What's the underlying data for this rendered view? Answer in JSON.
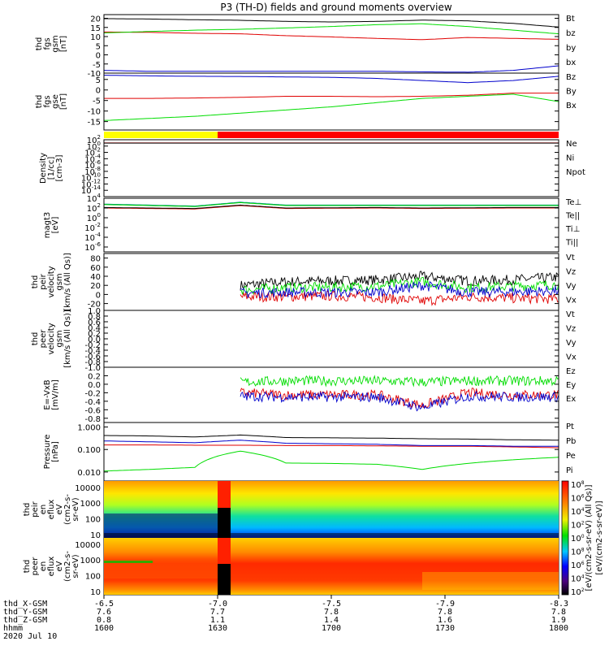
{
  "title": "P3 (TH-D) fields and ground moments overview",
  "colors": {
    "black": "#000000",
    "red": "#e00000",
    "green": "#00dd00",
    "blue": "#0000cc",
    "yellow": "#ffff00",
    "cyan": "#008b8b"
  },
  "chart_data": [
    {
      "type": "line",
      "id": "fgs_gsm",
      "ylabel": [
        "thd",
        "fgs",
        "gsm",
        "[nT]"
      ],
      "ylim": [
        -10,
        22
      ],
      "yticks": [
        "20",
        "15",
        "10",
        "5",
        "0",
        "-5",
        "-10"
      ],
      "ytick_values": [
        20,
        15,
        10,
        5,
        0,
        -5,
        -10
      ],
      "series": [
        {
          "name": "Bt",
          "color": "black",
          "values": [
            19.8,
            19.6,
            19.2,
            18.9,
            18.3,
            18.0,
            18.3,
            19.0,
            18.6,
            17.2,
            15.2
          ]
        },
        {
          "name": "bz",
          "color": "red",
          "values": [
            12.5,
            12.3,
            11.8,
            11.5,
            10.5,
            9.8,
            9.0,
            8.3,
            9.5,
            9.0,
            8.5
          ]
        },
        {
          "name": "by",
          "color": "green",
          "values": [
            12.0,
            12.8,
            13.5,
            14.0,
            14.7,
            15.5,
            16.5,
            17.0,
            15.5,
            13.5,
            11.5
          ]
        },
        {
          "name": "bx",
          "color": "blue",
          "values": [
            -8.5,
            -9.0,
            -9.0,
            -9.0,
            -9.0,
            -9.0,
            -9.0,
            -9.3,
            -9.5,
            -8.5,
            -6.0
          ]
        }
      ]
    },
    {
      "type": "line",
      "id": "fgs_gse",
      "ylabel": [
        "thd",
        "fgs",
        "gse",
        "[nT]"
      ],
      "ylim": [
        -19,
        8
      ],
      "yticks": [
        "5",
        "0",
        "-5",
        "-10",
        "-15"
      ],
      "ytick_values": [
        5,
        0,
        -5,
        -10,
        -15
      ],
      "series": [
        {
          "name": "Bz",
          "color": "blue",
          "values": [
            7.0,
            6.7,
            6.5,
            6.4,
            6.2,
            6.0,
            5.5,
            4.5,
            3.5,
            4.5,
            6.5
          ]
        },
        {
          "name": "By",
          "color": "green",
          "values": [
            -14.5,
            -13.5,
            -12.5,
            -11.0,
            -9.5,
            -8.0,
            -6.0,
            -4.0,
            -3.0,
            -2.0,
            -5.5
          ]
        },
        {
          "name": "Bx",
          "color": "red",
          "values": [
            -4.0,
            -4.0,
            -3.8,
            -3.5,
            -3.0,
            -3.0,
            -3.2,
            -3.0,
            -2.5,
            -1.5,
            -1.5
          ]
        }
      ]
    },
    {
      "type": "line",
      "id": "density",
      "ylabel": [
        "Density",
        "[1/cc]",
        "[cm-3]"
      ],
      "scale": "log",
      "ylim": [
        -16,
        2
      ],
      "yticks": [
        "10",
        "10",
        "10",
        "10",
        "10",
        "10",
        "10",
        "10",
        "10"
      ],
      "ytick_exponents": [
        "2",
        "0",
        "-2",
        "-4",
        "-6",
        "-8",
        "-10",
        "-12",
        "-14"
      ],
      "ytick_values": [
        2,
        0,
        -2,
        -4,
        -6,
        -8,
        -10,
        -12,
        -14
      ],
      "series": [
        {
          "name": "Ne",
          "color": "red",
          "values": [
            1.0,
            1.0,
            1.0,
            1.0,
            1.0,
            1.0,
            1.0,
            1.0,
            1.0,
            1.0,
            1.0
          ]
        },
        {
          "name": "Ni",
          "color": "black",
          "values": [
            0.95,
            0.95,
            0.95,
            0.95,
            0.95,
            0.95,
            0.95,
            0.95,
            0.95,
            0.95,
            0.95
          ]
        },
        {
          "name": "Npot",
          "color": "blue",
          "values": []
        }
      ]
    },
    {
      "type": "line",
      "id": "temperature",
      "ylabel": [
        "magt3",
        "[eV]"
      ],
      "scale": "log",
      "ylim": [
        -7,
        4
      ],
      "yticks": [
        "10",
        "10",
        "10",
        "10",
        "10",
        "10"
      ],
      "ytick_exponents": [
        "4",
        "2",
        "0",
        "-2",
        "-4",
        "-6"
      ],
      "ytick_values": [
        4,
        2,
        0,
        -2,
        -4,
        -6
      ],
      "series": [
        {
          "name": "Te⊥",
          "color": "red",
          "values": [
            2.0,
            1.9,
            1.8,
            2.5,
            1.9,
            1.95,
            2.0,
            1.9,
            1.95,
            2.0,
            2.0
          ]
        },
        {
          "name": "Te||",
          "color": "black",
          "values": [
            2.1,
            2.0,
            1.9,
            2.6,
            2.0,
            2.05,
            2.1,
            2.0,
            2.05,
            2.1,
            2.1
          ]
        },
        {
          "name": "Ti⊥",
          "color": "cyan",
          "values": [
            2.8,
            2.6,
            2.4,
            3.2,
            2.6,
            2.6,
            2.6,
            2.6,
            2.6,
            2.6,
            2.6
          ]
        },
        {
          "name": "Ti||",
          "color": "green",
          "values": [
            2.7,
            2.5,
            2.3,
            3.1,
            2.5,
            2.5,
            2.5,
            2.5,
            2.5,
            2.5,
            2.5
          ]
        }
      ]
    },
    {
      "type": "line",
      "id": "peir_velocity",
      "ylabel": [
        "thd",
        "peir",
        "velocity",
        "gsm",
        "[km/s (All Qs)]"
      ],
      "ylim": [
        -35,
        90
      ],
      "yticks": [
        "80",
        "60",
        "40",
        "20",
        "0",
        "-20"
      ],
      "ytick_values": [
        80,
        60,
        40,
        20,
        0,
        -20
      ],
      "data_start_x": 0.255,
      "series": [
        {
          "name": "Vt",
          "color": "black",
          "values": [
            null,
            null,
            null,
            20,
            28,
            30,
            32,
            40,
            30,
            32,
            38
          ]
        },
        {
          "name": "Vz",
          "color": "red",
          "values": [
            null,
            null,
            null,
            -5,
            -5,
            -3,
            -6,
            -15,
            -5,
            -8,
            -10
          ]
        },
        {
          "name": "Vy",
          "color": "green",
          "values": [
            null,
            null,
            null,
            10,
            15,
            16,
            18,
            28,
            15,
            18,
            22
          ]
        },
        {
          "name": "Vx",
          "color": "blue",
          "values": [
            null,
            null,
            null,
            3,
            5,
            4,
            5,
            20,
            5,
            6,
            8
          ]
        }
      ]
    },
    {
      "type": "line",
      "id": "peer_velocity",
      "ylabel": [
        "thd",
        "peer",
        "velocity",
        "gsm",
        "[km/s (All Qs)]"
      ],
      "ylim": [
        -1,
        1
      ],
      "yticks": [
        "1.0",
        "0.8",
        "0.6",
        "0.4",
        "0.2",
        "0.0",
        "-0.2",
        "-0.4",
        "-0.6",
        "-0.8",
        "-1.0"
      ],
      "ytick_values": [
        1.0,
        0.8,
        0.6,
        0.4,
        0.2,
        0.0,
        -0.2,
        -0.4,
        -0.6,
        -0.8,
        -1.0
      ],
      "series": [
        {
          "name": "Vt",
          "color": "black",
          "values": []
        },
        {
          "name": "Vz",
          "color": "red",
          "values": []
        },
        {
          "name": "Vy",
          "color": "green",
          "values": []
        },
        {
          "name": "Vx",
          "color": "blue",
          "values": []
        }
      ]
    },
    {
      "type": "line",
      "id": "efield",
      "ylabel": [
        "E=-VxB",
        "[mV/m]"
      ],
      "ylim": [
        -0.9,
        0.4
      ],
      "yticks": [
        "0.2",
        "0.0",
        "-0.2",
        "-0.4",
        "-0.6",
        "-0.8"
      ],
      "ytick_values": [
        0.2,
        0.0,
        -0.2,
        -0.4,
        -0.6,
        -0.8
      ],
      "series": [
        {
          "name": "Ez",
          "color": "red",
          "values": [
            null,
            null,
            null,
            -0.2,
            -0.25,
            -0.25,
            -0.25,
            -0.5,
            -0.2,
            -0.25,
            -0.25
          ]
        },
        {
          "name": "Ey",
          "color": "green",
          "values": [
            null,
            null,
            null,
            0.05,
            0.08,
            0.08,
            0.08,
            0.05,
            0.08,
            0.08,
            0.08
          ]
        },
        {
          "name": "Ex",
          "color": "blue",
          "values": [
            null,
            null,
            null,
            -0.28,
            -0.3,
            -0.3,
            -0.3,
            -0.55,
            -0.28,
            -0.3,
            -0.3
          ]
        }
      ]
    },
    {
      "type": "line",
      "id": "pressure",
      "ylabel": [
        "Pressure",
        "[nPa]"
      ],
      "scale": "log",
      "ylim": [
        -2.4,
        0.2
      ],
      "yticks": [
        "1.000",
        "0.100",
        "0.010"
      ],
      "ytick_values": [
        0,
        -1,
        -2
      ],
      "series": [
        {
          "name": "Pt",
          "color": "black",
          "values": [
            0.42,
            0.4,
            0.36,
            0.44,
            0.34,
            0.33,
            0.32,
            0.3,
            0.29,
            0.27,
            0.26
          ]
        },
        {
          "name": "Pb",
          "color": "red",
          "values": [
            0.16,
            0.16,
            0.155,
            0.155,
            0.15,
            0.15,
            0.145,
            0.14,
            0.14,
            0.13,
            0.12
          ]
        },
        {
          "name": "Pe",
          "color": "green",
          "values": [
            0.011,
            0.013,
            0.016,
            0.085,
            0.025,
            0.024,
            0.022,
            0.013,
            0.024,
            0.035,
            0.045
          ]
        },
        {
          "name": "Pi",
          "color": "blue",
          "values": [
            0.24,
            0.22,
            0.2,
            0.26,
            0.19,
            0.18,
            0.17,
            0.15,
            0.15,
            0.14,
            0.14
          ]
        }
      ]
    },
    {
      "type": "heatmap",
      "id": "peir_en_eflux",
      "ylabel": [
        "thd",
        "peir",
        "en",
        "eflux",
        "eV",
        "(cm2-s-",
        "sr-eV)"
      ],
      "scale": "log",
      "yticks": [
        "10000",
        "1000",
        "100",
        "10"
      ],
      "ytick_values": [
        10000,
        1000,
        100,
        10
      ]
    },
    {
      "type": "heatmap",
      "id": "peer_en_eflux",
      "ylabel": [
        "thd",
        "peer",
        "en",
        "eflux",
        "eV",
        "(cm2-s-",
        "sr-eV)"
      ],
      "scale": "log",
      "yticks": [
        "10000",
        "1000",
        "100",
        "10"
      ],
      "ytick_values": [
        10000,
        1000,
        100,
        10
      ]
    }
  ],
  "colorbar": {
    "label": "[eV/(cm2-s-sr-eV)]",
    "overlap_label": "[eV/(cm2-s-sr-eV) (All Qs)]",
    "ticks": [
      "10",
      "10",
      "10",
      "10",
      "10",
      "10",
      "10",
      "10",
      "10"
    ],
    "tick_exponents": [
      "8",
      "6",
      "4",
      "2",
      "0",
      "8",
      "6",
      "4",
      "2"
    ]
  },
  "state_bar": {
    "colors": [
      "yellow",
      "red"
    ],
    "split": 0.255
  },
  "x_axis": {
    "row_labels": [
      "thd_X-GSM",
      "thd_Y-GSM",
      "thd_Z-GSM",
      "hhmm",
      "2020 Jul 10"
    ],
    "columns": [
      {
        "x_gsm": "-6.5",
        "y_gsm": "7.6",
        "z_gsm": "0.8",
        "hhmm": "1600"
      },
      {
        "x_gsm": "-7.0",
        "y_gsm": "7.7",
        "z_gsm": "1.1",
        "hhmm": "1630"
      },
      {
        "x_gsm": "-7.5",
        "y_gsm": "7.8",
        "z_gsm": "1.4",
        "hhmm": "1700"
      },
      {
        "x_gsm": "-7.9",
        "y_gsm": "7.8",
        "z_gsm": "1.6",
        "hhmm": "1730"
      },
      {
        "x_gsm": "-8.3",
        "y_gsm": "7.8",
        "z_gsm": "1.9",
        "hhmm": "1800"
      }
    ]
  }
}
